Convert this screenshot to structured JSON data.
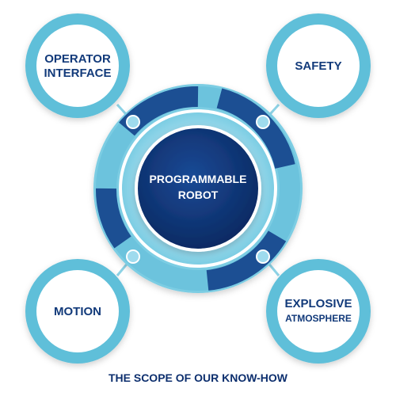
{
  "center": {
    "line1": "PROGRAMMABLE",
    "line2": "ROBOT"
  },
  "nodes": {
    "operator_interface": {
      "line1": "OPERATOR",
      "line2": "INTERFACE"
    },
    "safety": {
      "line1": "SAFETY"
    },
    "motion": {
      "line1": "MOTION"
    },
    "explosive_atmosphere": {
      "line1": "EXPLOSIVE",
      "line2": "ATMOSPHERE"
    }
  },
  "caption": "THE SCOPE OF OUR KNOW-HOW",
  "colors": {
    "navy": "#0d2f6e",
    "ring_dark": "#1c4f93",
    "ring_light": "#6cc3dd",
    "light_blue": "#7ccde3",
    "node_outer": "#5fbfd9",
    "inner_white": "#ffffff",
    "text": "#123a7a"
  }
}
